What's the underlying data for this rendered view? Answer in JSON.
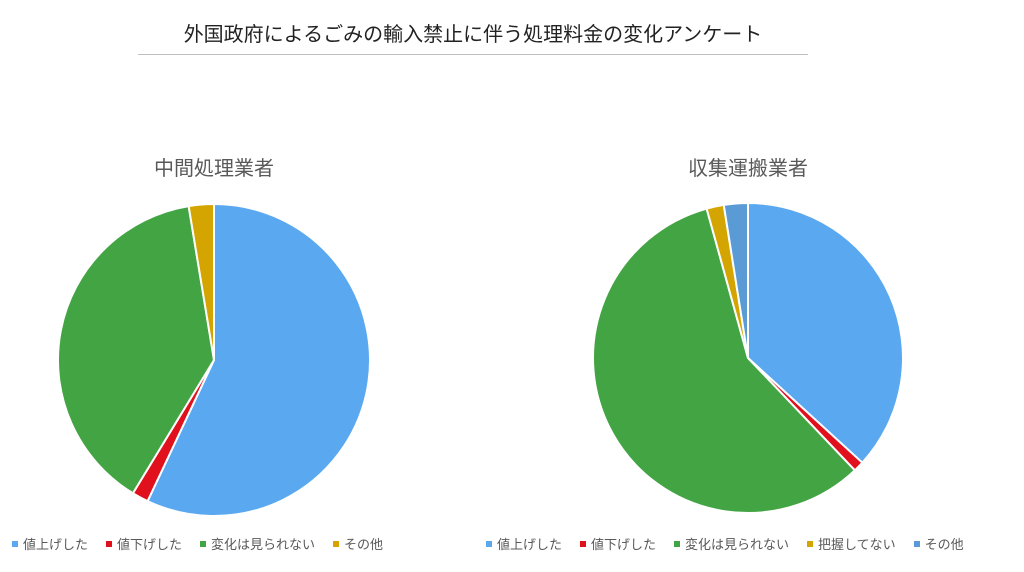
{
  "title": "外国政府によるごみの輸入禁止に伴う処理料金の変化アンケート",
  "chart_data": [
    {
      "type": "pie",
      "title": "中間処理業者",
      "categories": [
        "値上げした",
        "値下げした",
        "変化は見られない",
        "その他"
      ],
      "values": [
        57.0,
        1.7,
        38.7,
        2.6
      ],
      "colors": [
        "#5aa8f0",
        "#e0101c",
        "#43a444",
        "#d4a500"
      ],
      "legend": "bottom"
    },
    {
      "type": "pie",
      "title": "収集運搬業者",
      "categories": [
        "値上げした",
        "値下げした",
        "変化は見られない",
        "把握してない",
        "その他"
      ],
      "values": [
        36.8,
        1.1,
        57.8,
        1.8,
        2.5
      ],
      "colors": [
        "#5aa8f0",
        "#e0101c",
        "#43a444",
        "#d4a500",
        "#5b9bd5"
      ],
      "legend": "bottom"
    }
  ]
}
